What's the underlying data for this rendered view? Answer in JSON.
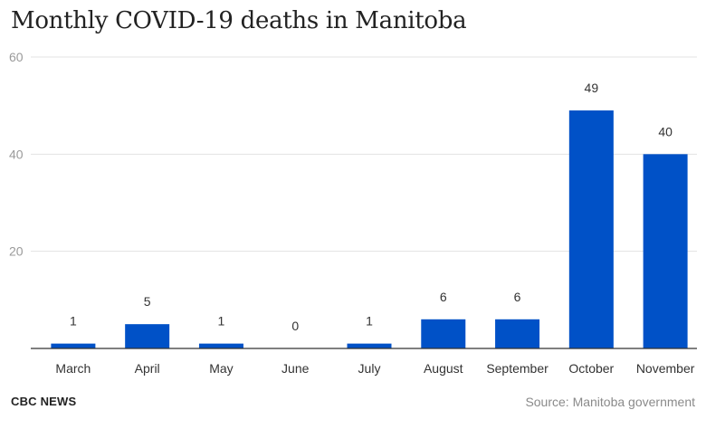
{
  "chart_data": {
    "type": "bar",
    "title": "Monthly COVID-19 deaths in Manitoba",
    "categories": [
      "March",
      "April",
      "May",
      "June",
      "July",
      "August",
      "September",
      "October",
      "November"
    ],
    "values": [
      1,
      5,
      1,
      0,
      1,
      6,
      6,
      49,
      40
    ],
    "ylim": [
      0,
      60
    ],
    "yticks": [
      20,
      40,
      60
    ],
    "grid": true,
    "bar_color": "#0051c7",
    "xlabel": "",
    "ylabel": ""
  },
  "footer": {
    "brand": "CBC NEWS",
    "source": "Source: Manitoba government"
  }
}
